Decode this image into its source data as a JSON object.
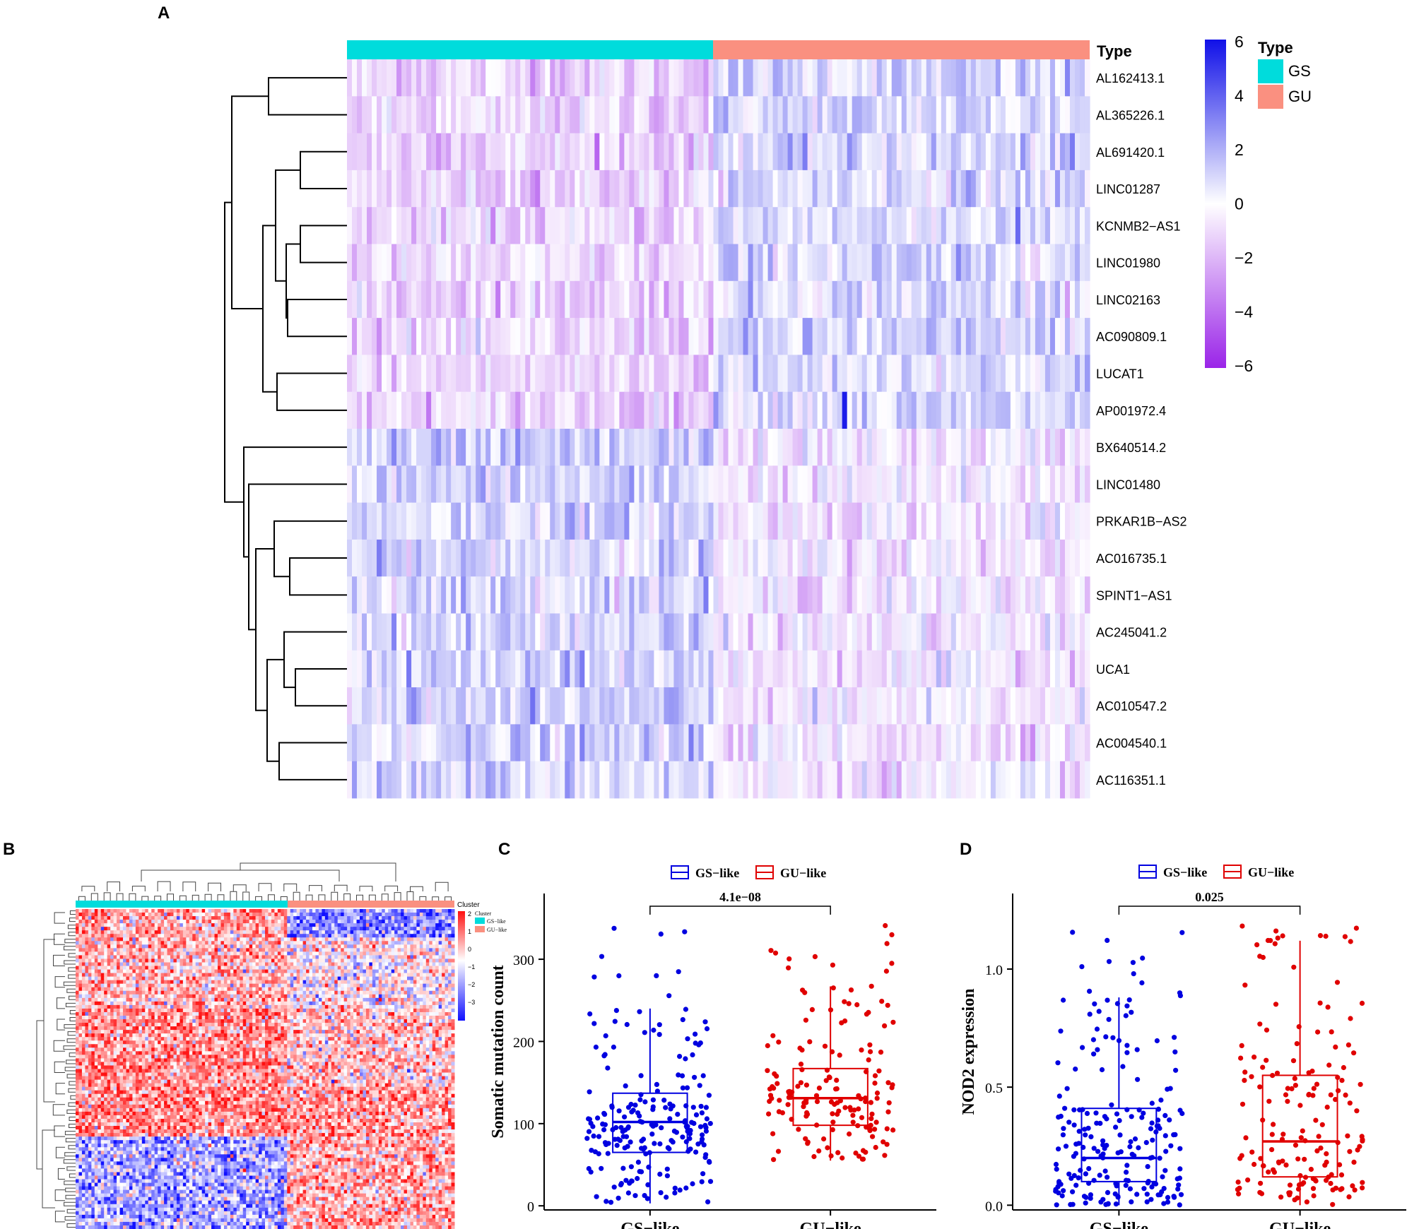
{
  "panels": {
    "A": "A",
    "B": "B",
    "C": "C",
    "D": "D"
  },
  "heatmap_a": {
    "type_label": "Type",
    "legend_title": "Type",
    "groups": [
      {
        "name": "GS",
        "color": "#00DCDC"
      },
      {
        "name": "GU",
        "color": "#FA9080"
      }
    ],
    "color_scale": {
      "min": -6,
      "max": 6,
      "ticks": [
        "6",
        "4",
        "2",
        "0",
        "−2",
        "−4",
        "−6"
      ],
      "low_color": "#9A24E8",
      "mid_color": "#FFFFFF",
      "high_color": "#1414E8"
    },
    "genes": [
      "AL162413.1",
      "AL365226.1",
      "AL691420.1",
      "LINC01287",
      "KCNMB2−AS1",
      "LINC01980",
      "LINC02163",
      "AC090809.1",
      "LUCAT1",
      "AP001972.4",
      "BX640514.2",
      "LINC01480",
      "PRKAR1B−AS2",
      "AC016735.1",
      "SPINT1−AS1",
      "AC245041.2",
      "UCA1",
      "AC010547.2",
      "AC004540.1",
      "AC116351.1"
    ]
  },
  "heatmap_b": {
    "legend_title": "Cluster",
    "cluster_legend_title": "Cluster",
    "groups": [
      {
        "name": "GS−like",
        "color": "#00DCDC"
      },
      {
        "name": "GU−like",
        "color": "#FA9080"
      }
    ],
    "scale_ticks": [
      "2",
      "1",
      "0",
      "−1",
      "−2",
      "−3"
    ]
  },
  "chart_data": [
    {
      "type": "boxplot",
      "panel": "C",
      "ylabel": "Somatic mutation count",
      "categories": [
        "GS−like",
        "GU−like"
      ],
      "legend": [
        "GS−like",
        "GU−like"
      ],
      "colors": [
        "#0000E0",
        "#E00000"
      ],
      "ylim": [
        -5,
        380
      ],
      "yticks": [
        "0",
        "100",
        "200",
        "300"
      ],
      "pvalue": "4.1e−08",
      "boxes": [
        {
          "name": "GS−like",
          "min": 3,
          "q1": 65,
          "median": 102,
          "q3": 137,
          "max": 240
        },
        {
          "name": "GU−like",
          "min": 55,
          "q1": 98,
          "median": 131,
          "q3": 167,
          "max": 267
        }
      ]
    },
    {
      "type": "boxplot",
      "panel": "D",
      "ylabel": "NOD2 expression",
      "categories": [
        "GS−like",
        "GU−like"
      ],
      "legend": [
        "GS−like",
        "GU−like"
      ],
      "colors": [
        "#0000E0",
        "#E00000"
      ],
      "ylim": [
        -0.02,
        1.32
      ],
      "yticks": [
        "0.0",
        "0.5",
        "1.0"
      ],
      "pvalue": "0.025",
      "boxes": [
        {
          "name": "GS−like",
          "min": 0.0,
          "q1": 0.1,
          "median": 0.2,
          "q3": 0.41,
          "max": 0.88
        },
        {
          "name": "GU−like",
          "min": 0.0,
          "q1": 0.12,
          "median": 0.27,
          "q3": 0.55,
          "max": 1.12
        }
      ]
    }
  ]
}
